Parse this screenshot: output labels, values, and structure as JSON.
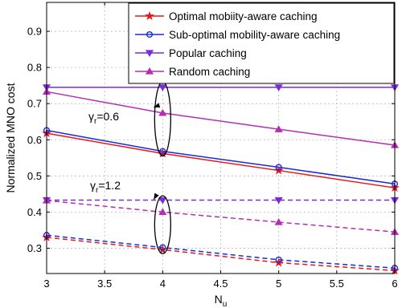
{
  "chart_data": {
    "type": "line",
    "xlabel": "N",
    "xlabel_sub": "u",
    "ylabel": "Normalized MNO cost",
    "xlim": [
      3,
      6
    ],
    "ylim": [
      0.23,
      0.98
    ],
    "x_ticks": [
      "3",
      "3.5",
      "4",
      "4.5",
      "5",
      "5.5",
      "6"
    ],
    "x_tick_values": [
      3,
      3.5,
      4,
      4.5,
      5,
      5.5,
      6
    ],
    "y_ticks": [
      "0.3",
      "0.4",
      "0.5",
      "0.6",
      "0.7",
      "0.8",
      "0.9"
    ],
    "y_tick_values": [
      0.3,
      0.4,
      0.5,
      0.6,
      0.7,
      0.8,
      0.9
    ],
    "grid": true,
    "legend_placement": "top-right",
    "legend": [
      {
        "label": "Optimal mobiity-aware caching",
        "color": "#e8161b",
        "marker": "star"
      },
      {
        "label": "Sub-optimal mobility-aware caching",
        "color": "#1a2bd6",
        "marker": "circle"
      },
      {
        "label": "Popular caching",
        "color": "#7a2cd8",
        "marker": "triangle-down"
      },
      {
        "label": "Random caching",
        "color": "#b62db3",
        "marker": "triangle-up"
      }
    ],
    "x": [
      3,
      4,
      5,
      6
    ],
    "series": [
      {
        "group": "gamma_0.6",
        "legend_index": 0,
        "color": "#e8161b",
        "marker": "star",
        "dashed": false,
        "values": [
          0.618,
          0.562,
          0.515,
          0.467
        ]
      },
      {
        "group": "gamma_0.6",
        "legend_index": 1,
        "color": "#1a2bd6",
        "marker": "circle",
        "dashed": false,
        "values": [
          0.626,
          0.568,
          0.524,
          0.478
        ]
      },
      {
        "group": "gamma_0.6",
        "legend_index": 2,
        "color": "#7a2cd8",
        "marker": "triangle-down",
        "dashed": false,
        "values": [
          0.745,
          0.745,
          0.745,
          0.745
        ]
      },
      {
        "group": "gamma_0.6",
        "legend_index": 3,
        "color": "#b62db3",
        "marker": "triangle-up",
        "dashed": false,
        "values": [
          0.733,
          0.674,
          0.629,
          0.585
        ]
      },
      {
        "group": "gamma_1.2",
        "legend_index": 0,
        "color": "#e8161b",
        "marker": "star",
        "dashed": true,
        "values": [
          0.33,
          0.296,
          0.26,
          0.238
        ]
      },
      {
        "group": "gamma_1.2",
        "legend_index": 1,
        "color": "#1a2bd6",
        "marker": "circle",
        "dashed": true,
        "values": [
          0.336,
          0.302,
          0.268,
          0.245
        ]
      },
      {
        "group": "gamma_1.2",
        "legend_index": 2,
        "color": "#7a2cd8",
        "marker": "triangle-down",
        "dashed": true,
        "values": [
          0.433,
          0.433,
          0.433,
          0.433
        ]
      },
      {
        "group": "gamma_1.2",
        "legend_index": 3,
        "color": "#b62db3",
        "marker": "triangle-up",
        "dashed": true,
        "values": [
          0.432,
          0.4,
          0.372,
          0.345
        ]
      }
    ],
    "annotations": [
      {
        "symbol": "γ",
        "sub": "r",
        "text": "=0.6",
        "target_x": 4,
        "target_y": 0.69,
        "ellipse_y_range": [
          0.555,
          0.76
        ]
      },
      {
        "symbol": "γ",
        "sub": "r",
        "text": "=1.2",
        "target_x": 4,
        "target_y": 0.435,
        "ellipse_y_range": [
          0.285,
          0.445
        ]
      }
    ]
  }
}
